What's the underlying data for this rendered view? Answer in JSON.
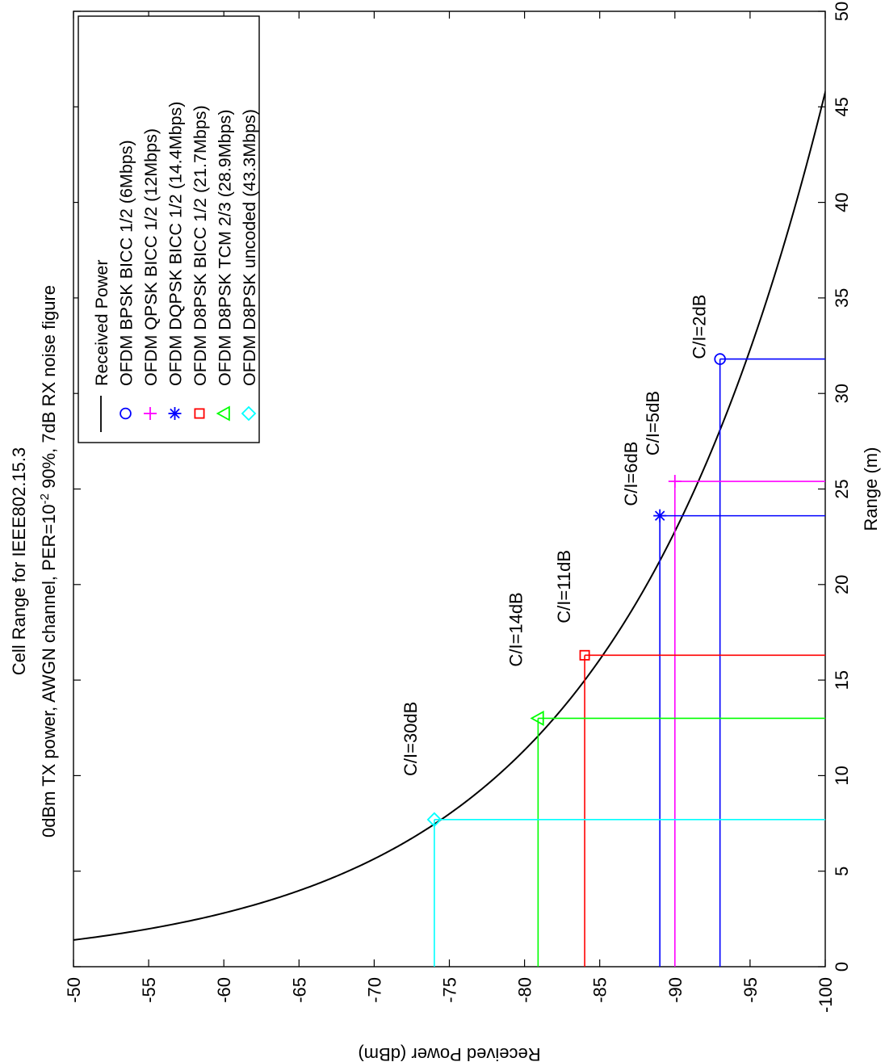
{
  "chart_data": {
    "type": "line",
    "title": "Cell Range for IEEE802.15.3",
    "subtitle_parts": [
      "0dBm TX power, AWGN channel, PER=10",
      "-2",
      " 90%, 7dB RX noise figure"
    ],
    "xlabel": "Range (m)",
    "ylabel": "Received Power (dBm)",
    "xlim": [
      0,
      50
    ],
    "ylim": [
      -100,
      -50
    ],
    "xticks": [
      0,
      5,
      10,
      15,
      20,
      25,
      30,
      35,
      40,
      45,
      50
    ],
    "yticks": [
      -50,
      -55,
      -60,
      -65,
      -70,
      -75,
      -80,
      -85,
      -90,
      -95,
      -100
    ],
    "xtick_labels": [
      "0",
      "5",
      "10",
      "15",
      "20",
      "25",
      "30",
      "35",
      "40",
      "45",
      "50"
    ],
    "ytick_labels": [
      "-50",
      "-55",
      "-60",
      "-65",
      "-70",
      "-75",
      "-80",
      "-85",
      "-90",
      "-95",
      "-100"
    ],
    "grid": false,
    "legend_position": "top-right",
    "curve": {
      "name": "Received Power",
      "color": "#000000",
      "anchor_range_m": 10,
      "anchor_power_dbm": -78.2,
      "path_loss_exponent": 3.3
    },
    "series": [
      {
        "name": "OFDM BPSK BICC 1/2 (6Mbps)",
        "marker": "circle",
        "color": "#0000ff",
        "x": 31.8,
        "y": -93.0,
        "annotation": "C/I=2dB"
      },
      {
        "name": "OFDM QPSK BICC 1/2 (12Mbps)",
        "marker": "plus",
        "color": "#ff00ff",
        "x": 25.4,
        "y": -90.0,
        "annotation": "C/I=5dB"
      },
      {
        "name": "OFDM DQPSK BICC 1/2 (14.4Mbps)",
        "marker": "star",
        "color": "#0000ff",
        "x": 23.6,
        "y": -89.0,
        "annotation": "C/I=6dB"
      },
      {
        "name": "OFDM D8PSK BICC 1/2 (21.7Mbps)",
        "marker": "square",
        "color": "#ff0000",
        "x": 16.3,
        "y": -84.0,
        "annotation": "C/I=11dB"
      },
      {
        "name": "OFDM D8PSK TCM 2/3 (28.9Mbps)",
        "marker": "triangle",
        "color": "#00ff00",
        "x": 13.0,
        "y": -80.9,
        "annotation": "C/I=14dB"
      },
      {
        "name": "OFDM D8PSK uncoded (43.3Mbps)",
        "marker": "diamond",
        "color": "#00ffff",
        "x": 7.7,
        "y": -74.0,
        "annotation": "C/I=30dB"
      }
    ]
  }
}
